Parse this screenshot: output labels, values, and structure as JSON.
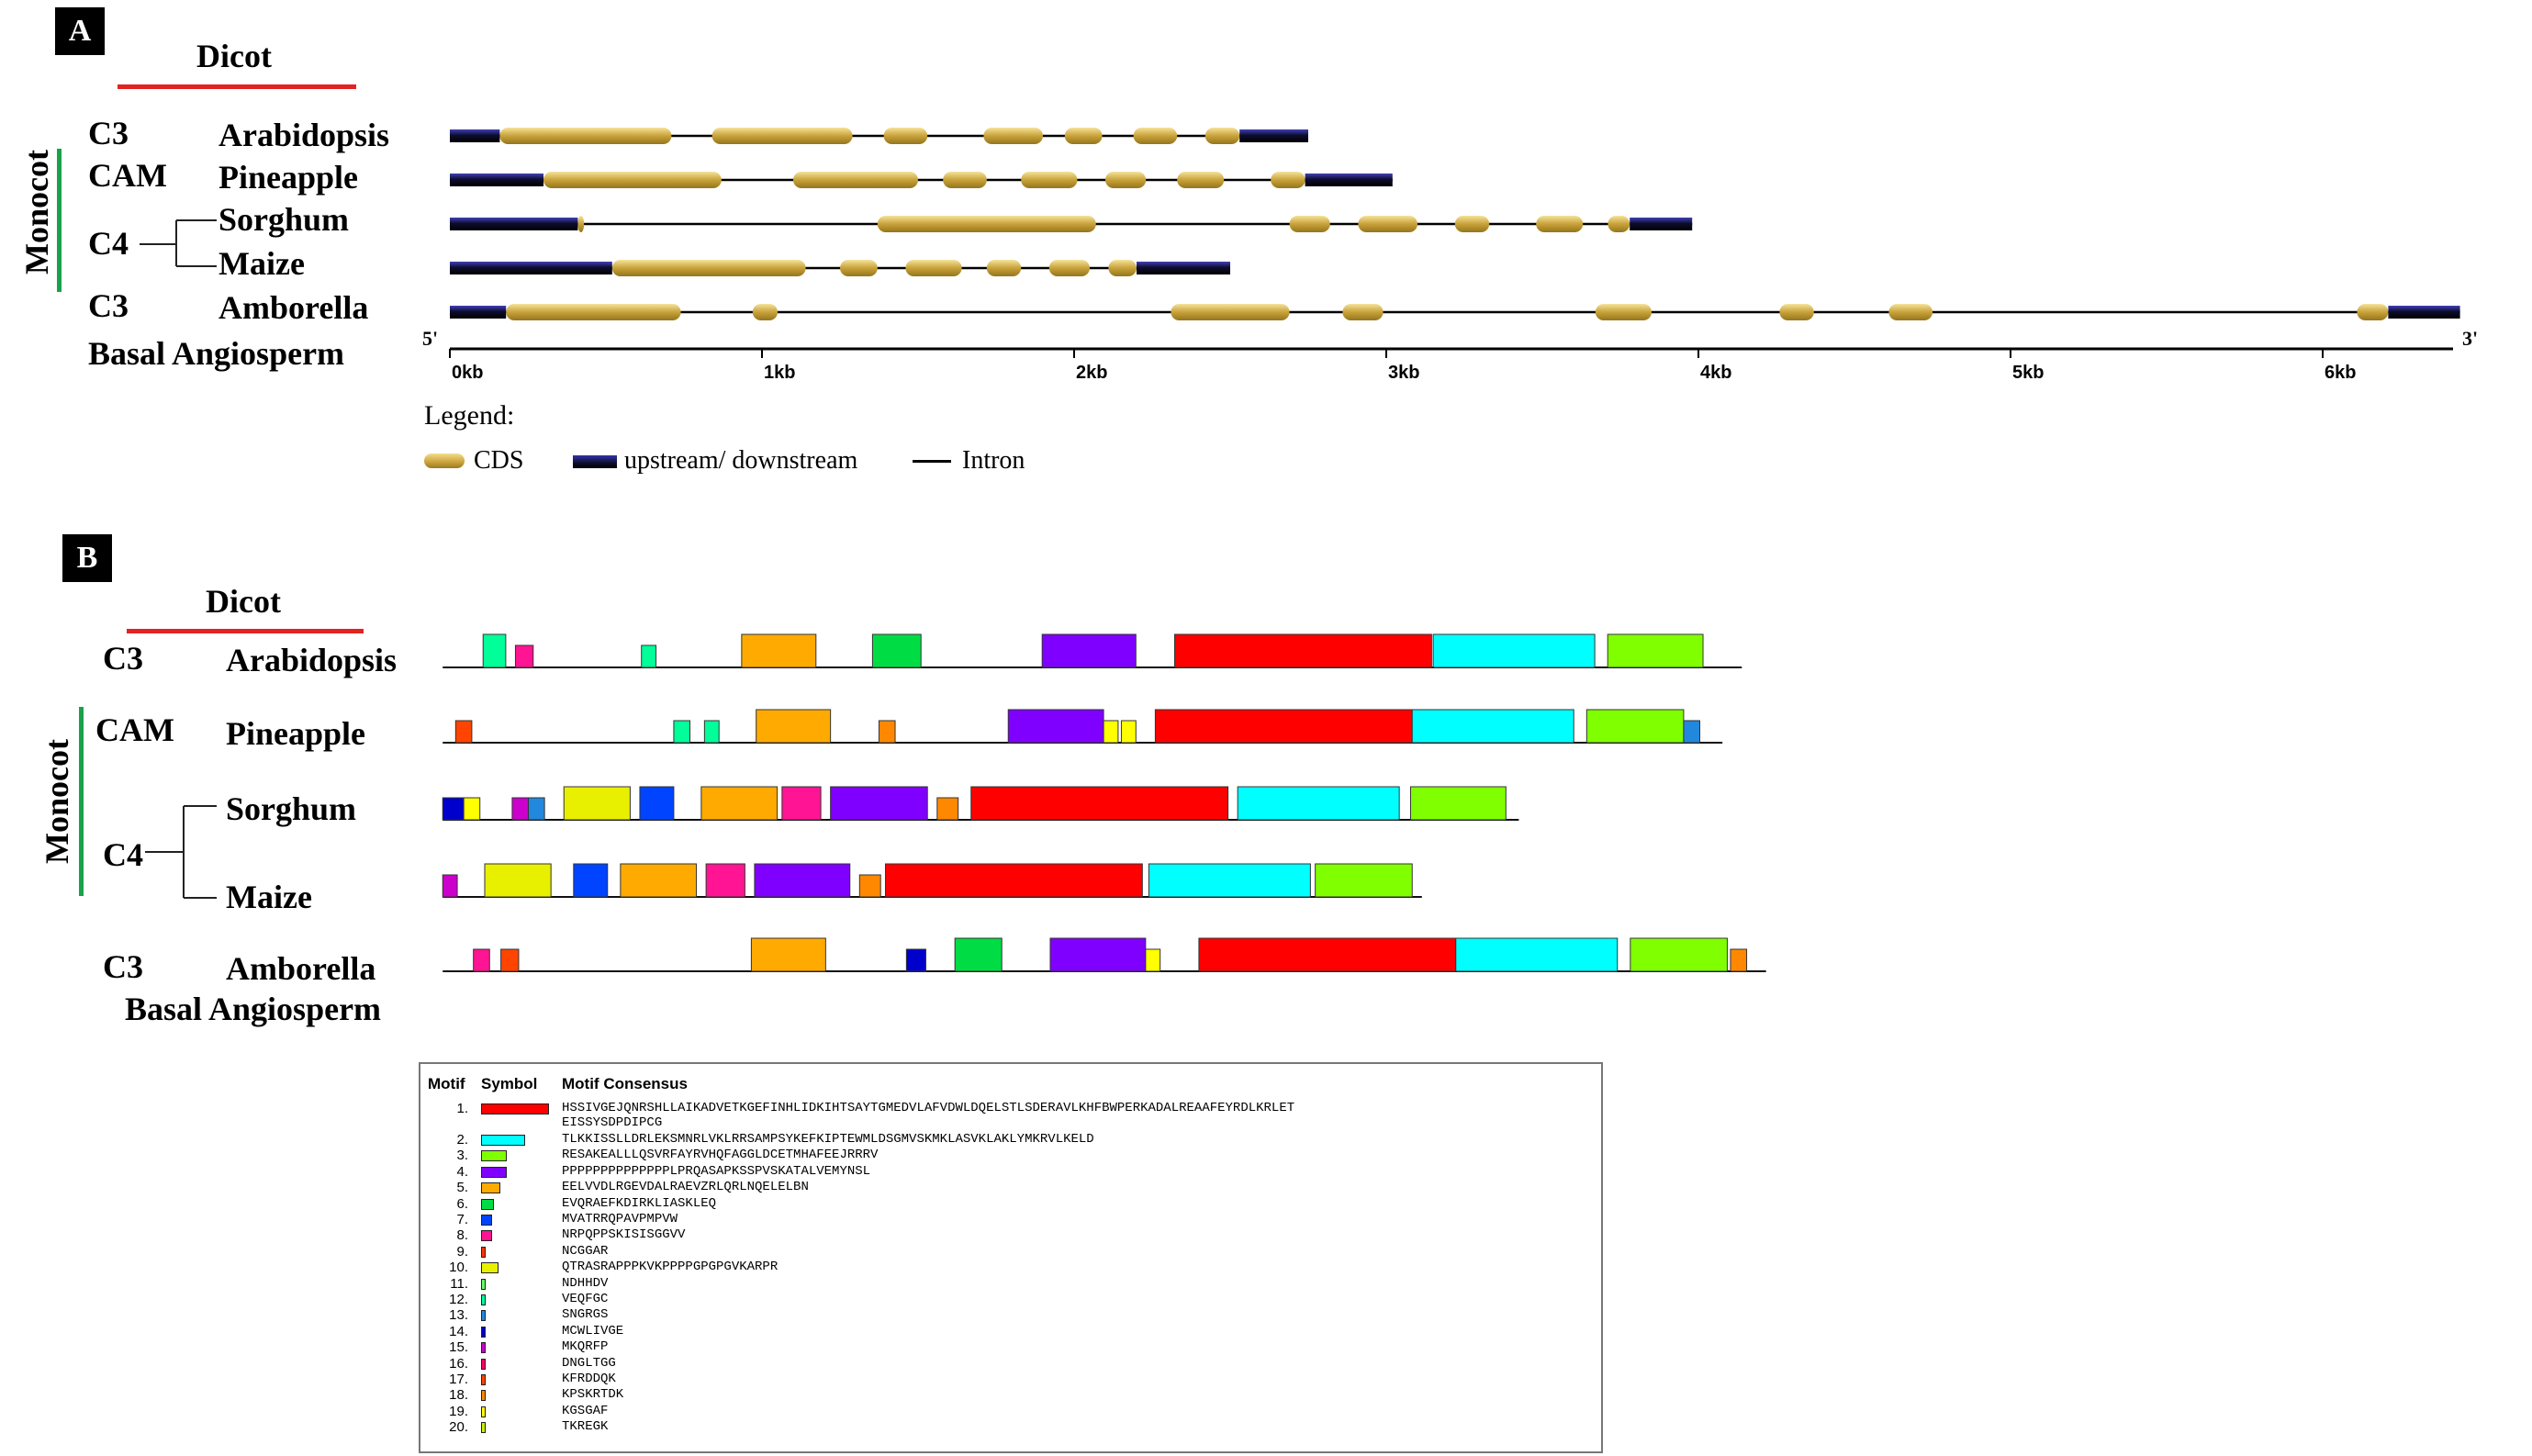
{
  "panel_a": {
    "badge": "A",
    "dicot_label": "Dicot",
    "monocot_label": "Monocot",
    "rows": [
      {
        "group": "C3",
        "species": "Arabidopsis",
        "length_kb": 2.75,
        "upstream": [
          [
            0,
            0.16
          ]
        ],
        "downstream": [
          [
            2.53,
            2.75
          ]
        ],
        "cds": [
          [
            0.16,
            0.71
          ],
          [
            0.84,
            1.29
          ],
          [
            1.39,
            1.53
          ],
          [
            1.71,
            1.9
          ],
          [
            1.97,
            2.09
          ],
          [
            2.19,
            2.33
          ],
          [
            2.42,
            2.53
          ]
        ]
      },
      {
        "group": "CAM",
        "species": "Pineapple",
        "length_kb": 3.02,
        "upstream": [
          [
            0,
            0.3
          ]
        ],
        "downstream": [
          [
            2.74,
            3.02
          ]
        ],
        "cds": [
          [
            0.3,
            0.87
          ],
          [
            1.1,
            1.5
          ],
          [
            1.58,
            1.72
          ],
          [
            1.83,
            2.01
          ],
          [
            2.1,
            2.23
          ],
          [
            2.33,
            2.48
          ],
          [
            2.63,
            2.74
          ]
        ]
      },
      {
        "group": "C4",
        "species": "Sorghum",
        "length_kb": 3.98,
        "upstream": [
          [
            0,
            0.41
          ]
        ],
        "downstream": [
          [
            3.78,
            3.98
          ]
        ],
        "cds": [
          [
            0.41,
            0.43
          ],
          [
            1.37,
            2.07
          ],
          [
            2.69,
            2.82
          ],
          [
            2.91,
            3.1
          ],
          [
            3.22,
            3.33
          ],
          [
            3.48,
            3.63
          ],
          [
            3.71,
            3.78
          ]
        ]
      },
      {
        "group": "",
        "species": "Maize",
        "length_kb": 2.5,
        "upstream": [
          [
            0,
            0.52
          ]
        ],
        "downstream": [
          [
            2.2,
            2.5
          ]
        ],
        "cds": [
          [
            0.52,
            1.14
          ],
          [
            1.25,
            1.37
          ],
          [
            1.46,
            1.64
          ],
          [
            1.72,
            1.83
          ],
          [
            1.92,
            2.05
          ],
          [
            2.11,
            2.2
          ]
        ]
      },
      {
        "group": "C3",
        "species": "Amborella",
        "length_kb": 6.44,
        "upstream": [
          [
            0,
            0.18
          ]
        ],
        "downstream": [
          [
            6.21,
            6.44
          ]
        ],
        "cds": [
          [
            0.18,
            0.74
          ],
          [
            0.97,
            1.05
          ],
          [
            2.31,
            2.69
          ],
          [
            2.86,
            2.99
          ],
          [
            3.67,
            3.85
          ],
          [
            4.26,
            4.37
          ],
          [
            4.61,
            4.75
          ],
          [
            6.11,
            6.21
          ]
        ]
      }
    ],
    "basal_label": "Basal Angiosperm",
    "five_prime": "5'",
    "three_prime": "3'",
    "axis_ticks": [
      "0kb",
      "1kb",
      "2kb",
      "3kb",
      "4kb",
      "5kb",
      "6kb"
    ],
    "legend": {
      "title": "Legend:",
      "cds": "CDS",
      "updown": "upstream/ downstream",
      "intron": "Intron"
    },
    "colors": {
      "cds": "#c9a23a",
      "updown": "#0d0d2e",
      "dicot_bar": "#e32222",
      "monocot_bar": "#1aa24a"
    }
  },
  "panel_b": {
    "badge": "B",
    "dicot_label": "Dicot",
    "monocot_label": "Monocot",
    "basal_label": "Basal Angiosperm",
    "rows": [
      {
        "group": "C3",
        "species": "Arabidopsis",
        "line_end": 1078,
        "blocks": [
          [
            12,
            299,
            313
          ],
          [
            8,
            319,
            330
          ],
          [
            12,
            397,
            406
          ],
          [
            5,
            459,
            505
          ],
          [
            6,
            540,
            570
          ],
          [
            4,
            645,
            703
          ],
          [
            1,
            727,
            886
          ],
          [
            2,
            887,
            987
          ],
          [
            3,
            995,
            1054
          ]
        ]
      },
      {
        "group": "CAM",
        "species": "Pineapple",
        "line_end": 1066,
        "blocks": [
          [
            17,
            282,
            292
          ],
          [
            12,
            417,
            427
          ],
          [
            12,
            436,
            445
          ],
          [
            5,
            468,
            514
          ],
          [
            18,
            544,
            554
          ],
          [
            4,
            624,
            683
          ],
          [
            19,
            683,
            692
          ],
          [
            19,
            694,
            703
          ],
          [
            1,
            715,
            874
          ],
          [
            2,
            874,
            974
          ],
          [
            3,
            982,
            1042
          ],
          [
            13,
            1042,
            1052
          ]
        ]
      },
      {
        "group": "C4",
        "species": "Sorghum",
        "line_end": 940,
        "blocks": [
          [
            14,
            274,
            287
          ],
          [
            19,
            287,
            297
          ],
          [
            15,
            317,
            327
          ],
          [
            13,
            327,
            337
          ],
          [
            10,
            349,
            390
          ],
          [
            7,
            396,
            417
          ],
          [
            5,
            434,
            481
          ],
          [
            8,
            484,
            508
          ],
          [
            4,
            514,
            574
          ],
          [
            18,
            580,
            593
          ],
          [
            1,
            601,
            760
          ],
          [
            2,
            766,
            866
          ],
          [
            3,
            873,
            932
          ]
        ]
      },
      {
        "group": "",
        "species": "Maize",
        "line_end": 880,
        "blocks": [
          [
            15,
            274,
            283
          ],
          [
            10,
            300,
            341
          ],
          [
            7,
            355,
            376
          ],
          [
            5,
            384,
            431
          ],
          [
            8,
            437,
            461
          ],
          [
            4,
            467,
            526
          ],
          [
            18,
            532,
            545
          ],
          [
            1,
            548,
            707
          ],
          [
            2,
            711,
            811
          ],
          [
            3,
            814,
            874
          ]
        ]
      },
      {
        "group": "C3",
        "species": "Amborella",
        "line_end": 1093,
        "blocks": [
          [
            8,
            293,
            303
          ],
          [
            17,
            310,
            321
          ],
          [
            5,
            465,
            511
          ],
          [
            14,
            561,
            573
          ],
          [
            6,
            591,
            620
          ],
          [
            4,
            650,
            709
          ],
          [
            19,
            709,
            718
          ],
          [
            1,
            742,
            901
          ],
          [
            2,
            901,
            1001
          ],
          [
            3,
            1009,
            1069
          ],
          [
            18,
            1071,
            1081
          ]
        ]
      }
    ]
  },
  "motif_table": {
    "headers": {
      "motif": "Motif",
      "symbol": "Symbol",
      "consensus": "Motif Consensus"
    },
    "motifs": [
      {
        "num": "1.",
        "color": "#ff0000",
        "width": 42,
        "seq": "HSSIVGEJQNRSHLLAIKADVETKGEFINHLIDKIHTSAYTGMEDVLAFVDWLDQELSTLSDERAVLKHFBWPERKADALREAAFEYRDLKRLET",
        "seq2": "EISSYSDPDIPCG"
      },
      {
        "num": "2.",
        "color": "#00ffff",
        "width": 27,
        "seq": "TLKKISSLLDRLEKSMNRLVKLRRSAMPSYKEFKIPTEWMLDSGMVSKMKLASVKLAKLYMKRVLKELD"
      },
      {
        "num": "3.",
        "color": "#80ff00",
        "width": 16,
        "seq": "RESAKEALLLQSVRFAYRVHQFAGGLDCETMHAFEEJRRRV"
      },
      {
        "num": "4.",
        "color": "#8000ff",
        "width": 16,
        "seq": "PPPPPPPPPPPPPPLPRQASAPKSSPVSKATALVEMYNSL"
      },
      {
        "num": "5.",
        "color": "#ffaa00",
        "width": 12,
        "seq": "EELVVDLRGEVDALRAEVZRLQRLNQELELBN"
      },
      {
        "num": "6.",
        "color": "#00dd44",
        "width": 8,
        "seq": "EVQRAEFKDIRKLIASKLEQ"
      },
      {
        "num": "7.",
        "color": "#0044ff",
        "width": 7,
        "seq": "MVATRRQPAVPMPVW"
      },
      {
        "num": "8.",
        "color": "#ff1493",
        "width": 7,
        "seq": "NRPQPPSKISISGGVV"
      },
      {
        "num": "9.",
        "color": "#ff3300",
        "width": 3,
        "seq": "NCGGAR"
      },
      {
        "num": "10.",
        "color": "#e8f000",
        "width": 11,
        "seq": "QTRASRAPPPKVKPPPPGPGPGVKARPR"
      },
      {
        "num": "11.",
        "color": "#66ff66",
        "width": 3,
        "seq": "NDHHDV"
      },
      {
        "num": "12.",
        "color": "#00ff99",
        "width": 3,
        "seq": "VEQFGC"
      },
      {
        "num": "13.",
        "color": "#2288dd",
        "width": 3,
        "seq": "SNGRGS"
      },
      {
        "num": "14.",
        "color": "#0000cc",
        "width": 3,
        "seq": "MCWLIVGE"
      },
      {
        "num": "15.",
        "color": "#cc00cc",
        "width": 3,
        "seq": "MKQRFP"
      },
      {
        "num": "16.",
        "color": "#ff0066",
        "width": 3,
        "seq": "DNGLTGG"
      },
      {
        "num": "17.",
        "color": "#ff4400",
        "width": 3,
        "seq": "KFRDDQK"
      },
      {
        "num": "18.",
        "color": "#ff8800",
        "width": 3,
        "seq": "KPSKRTDK"
      },
      {
        "num": "19.",
        "color": "#ffff00",
        "width": 3,
        "seq": "KGSGAF"
      },
      {
        "num": "20.",
        "color": "#ccee00",
        "width": 3,
        "seq": "TKREGK"
      }
    ]
  }
}
